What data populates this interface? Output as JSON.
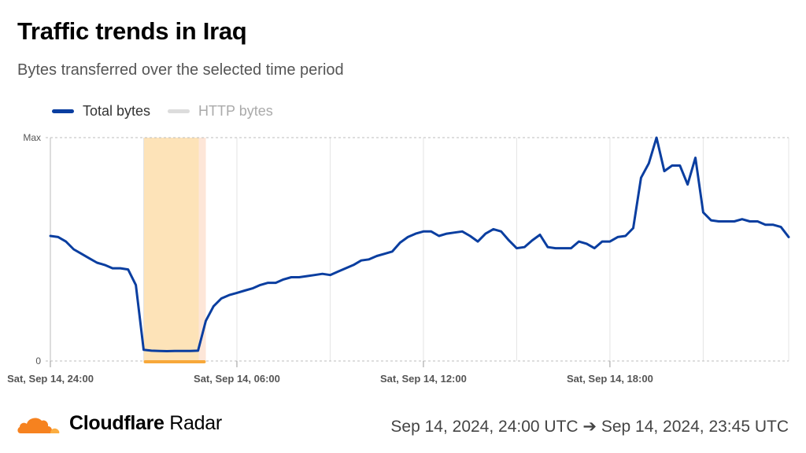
{
  "header": {
    "title": "Traffic trends in Iraq",
    "subtitle": "Bytes transferred over the selected time period"
  },
  "legend": {
    "total_label": "Total bytes",
    "http_label": "HTTP bytes",
    "total_color": "#0a3ea0",
    "http_color": "#dcdcdc"
  },
  "footer": {
    "brand_bold": "Cloudflare",
    "brand_light": "Radar",
    "range": "Sep 14, 2024, 24:00 UTC ➔ Sep 14, 2024, 23:45 UTC",
    "logo_color": "#f6821f"
  },
  "chart_data": {
    "type": "line",
    "title": "Traffic trends in Iraq",
    "ylabel": "",
    "xlabel": "",
    "y_tick_labels": [
      "0",
      "Max"
    ],
    "ylim": [
      0,
      100
    ],
    "x_unit": "hours since Sep 14 00:00 UTC",
    "xlim": [
      0,
      23.75
    ],
    "x_ticks": [
      {
        "x": 0,
        "label": "Sat, Sep 14, 24:00"
      },
      {
        "x": 6,
        "label": "Sat, Sep 14, 06:00"
      },
      {
        "x": 12,
        "label": "Sat, Sep 14, 12:00"
      },
      {
        "x": 18,
        "label": "Sat, Sep 14, 18:00"
      }
    ],
    "gridlines_x": [
      3,
      6,
      9,
      12,
      15,
      18,
      21,
      23.75
    ],
    "annotation_band": {
      "x_start": 3.0,
      "x_end": 5.0,
      "fill": "#fde3b8",
      "edge_fill": "#fde6d8",
      "bar_color": "#f7a83a"
    },
    "series": [
      {
        "name": "Total bytes",
        "color": "#0a3ea0",
        "x": [
          0.0,
          0.25,
          0.5,
          0.75,
          1.0,
          1.25,
          1.5,
          1.75,
          2.0,
          2.25,
          2.5,
          2.75,
          3.0,
          3.25,
          3.5,
          3.75,
          4.0,
          4.25,
          4.5,
          4.75,
          5.0,
          5.25,
          5.5,
          5.75,
          6.0,
          6.25,
          6.5,
          6.75,
          7.0,
          7.25,
          7.5,
          7.75,
          8.0,
          8.25,
          8.5,
          8.75,
          9.0,
          9.25,
          9.5,
          9.75,
          10.0,
          10.25,
          10.5,
          10.75,
          11.0,
          11.25,
          11.5,
          11.75,
          12.0,
          12.25,
          12.5,
          12.75,
          13.0,
          13.25,
          13.5,
          13.75,
          14.0,
          14.25,
          14.5,
          14.75,
          15.0,
          15.25,
          15.5,
          15.75,
          16.0,
          16.25,
          16.5,
          16.75,
          17.0,
          17.25,
          17.5,
          17.75,
          18.0,
          18.25,
          18.5,
          18.75,
          19.0,
          19.25,
          19.5,
          19.75,
          20.0,
          20.25,
          20.5,
          20.75,
          21.0,
          21.25,
          21.5,
          21.75,
          22.0,
          22.25,
          22.5,
          22.75,
          23.0,
          23.25,
          23.5,
          23.75
        ],
        "values": [
          56,
          55.5,
          53.5,
          50,
          48,
          46,
          44,
          43,
          41.5,
          41.5,
          41,
          34,
          5,
          4.6,
          4.5,
          4.4,
          4.5,
          4.5,
          4.5,
          4.6,
          18,
          24.5,
          28,
          29.5,
          30.5,
          31.5,
          32.5,
          34,
          35,
          35,
          36.5,
          37.5,
          37.5,
          38,
          38.5,
          39,
          38.5,
          40,
          41.5,
          43,
          45,
          45.5,
          47,
          48,
          49,
          53,
          55.5,
          57,
          58,
          58,
          56,
          57,
          57.5,
          58,
          56,
          53.5,
          57,
          59,
          58,
          54,
          50.5,
          51,
          54,
          56.5,
          51,
          50.5,
          50.5,
          50.5,
          53.5,
          52.5,
          50.5,
          53.5,
          53.5,
          55.5,
          56,
          59.5,
          82,
          88.5,
          100,
          85,
          87.5,
          87.5,
          79,
          91,
          66.5,
          63,
          62.5,
          62.5,
          62.5,
          63.5,
          62.5,
          62.5,
          61,
          61,
          60,
          55.5
        ]
      }
    ]
  }
}
